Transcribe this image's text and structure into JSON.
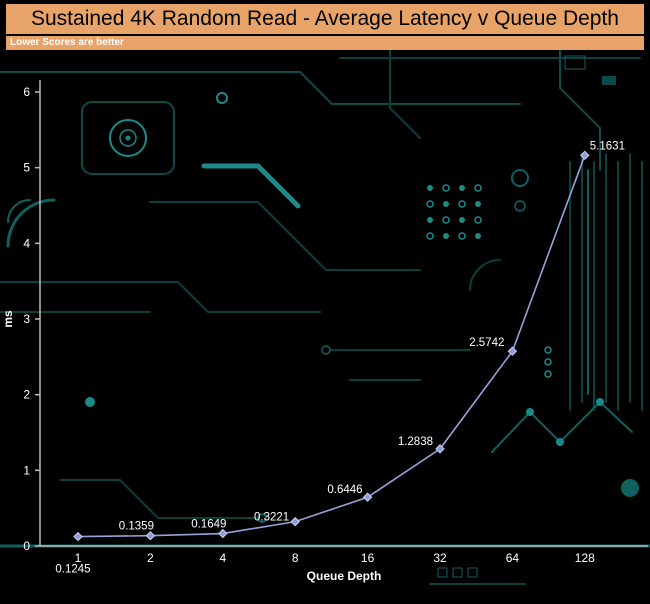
{
  "header": {
    "title": "Sustained 4K Random Read - Average Latency v Queue Depth",
    "subtitle": "Lower Scores are better"
  },
  "colors": {
    "header_bg": "#E8A468",
    "title_text": "#000000",
    "subtitle_text": "#FFFFFF",
    "background": "#000000",
    "axis": "#BEBEBE",
    "tick_text": "#FFFFFF",
    "line": "#97A3DB",
    "marker": "#8E9BD8",
    "marker_edge": "#CDD4F0",
    "data_label": "#FFFFFF",
    "circuit_dark": "#0C3F3F",
    "circuit_mid": "#116060",
    "circuit_bright": "#1B8A8A"
  },
  "chart_data": {
    "type": "line",
    "title": "Sustained 4K Random Read - Average Latency v Queue Depth",
    "subtitle": "Lower Scores are better",
    "series_name": "Average Latency (ms)",
    "categories": [
      "1",
      "2",
      "4",
      "8",
      "16",
      "32",
      "64",
      "128"
    ],
    "values": [
      0.1245,
      0.1359,
      0.1649,
      0.3221,
      0.6446,
      1.2838,
      2.5742,
      5.1631
    ],
    "point_labels": [
      "0.1245",
      "0.1359",
      "0.1649",
      "0.3221",
      "0.6446",
      "1.2838",
      "2.5742",
      "5.1631"
    ],
    "xlabel": "Queue Depth",
    "ylabel": "ms",
    "ylim": [
      0,
      6
    ],
    "yticks": [
      0,
      1,
      2,
      3,
      4,
      5,
      6
    ],
    "x_scale": "log2-categorical",
    "legend": "none",
    "grid": "off"
  }
}
